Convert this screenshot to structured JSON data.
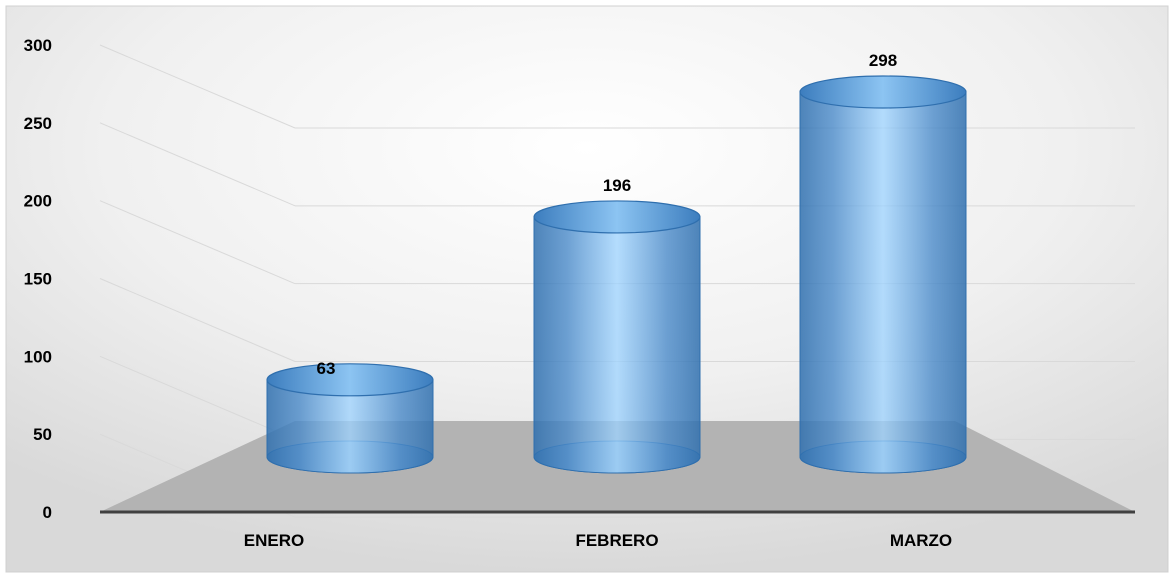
{
  "chart_data": {
    "type": "bar",
    "categories": [
      "ENERO",
      "FEBRERO",
      "MARZO"
    ],
    "values": [
      63,
      196,
      298
    ],
    "title": "",
    "xlabel": "",
    "ylabel": "",
    "ylim": [
      0,
      300
    ],
    "yticks": [
      0,
      50,
      100,
      150,
      200,
      250,
      300
    ],
    "data_labels": [
      "63",
      "196",
      "298"
    ],
    "grid": true,
    "legend": "none",
    "style": "3d-cylinder",
    "colors": {
      "bar": "#5B9BD5",
      "bar_highlight": "#9DD3FF",
      "bar_dark": "#2F6FAE",
      "floor": "#B3B3B3",
      "gridline": "#D9D9D9",
      "background_center": "#FFFFFF",
      "background_edge": "#DADADA",
      "text": "#000000",
      "axis": "#404040"
    }
  }
}
